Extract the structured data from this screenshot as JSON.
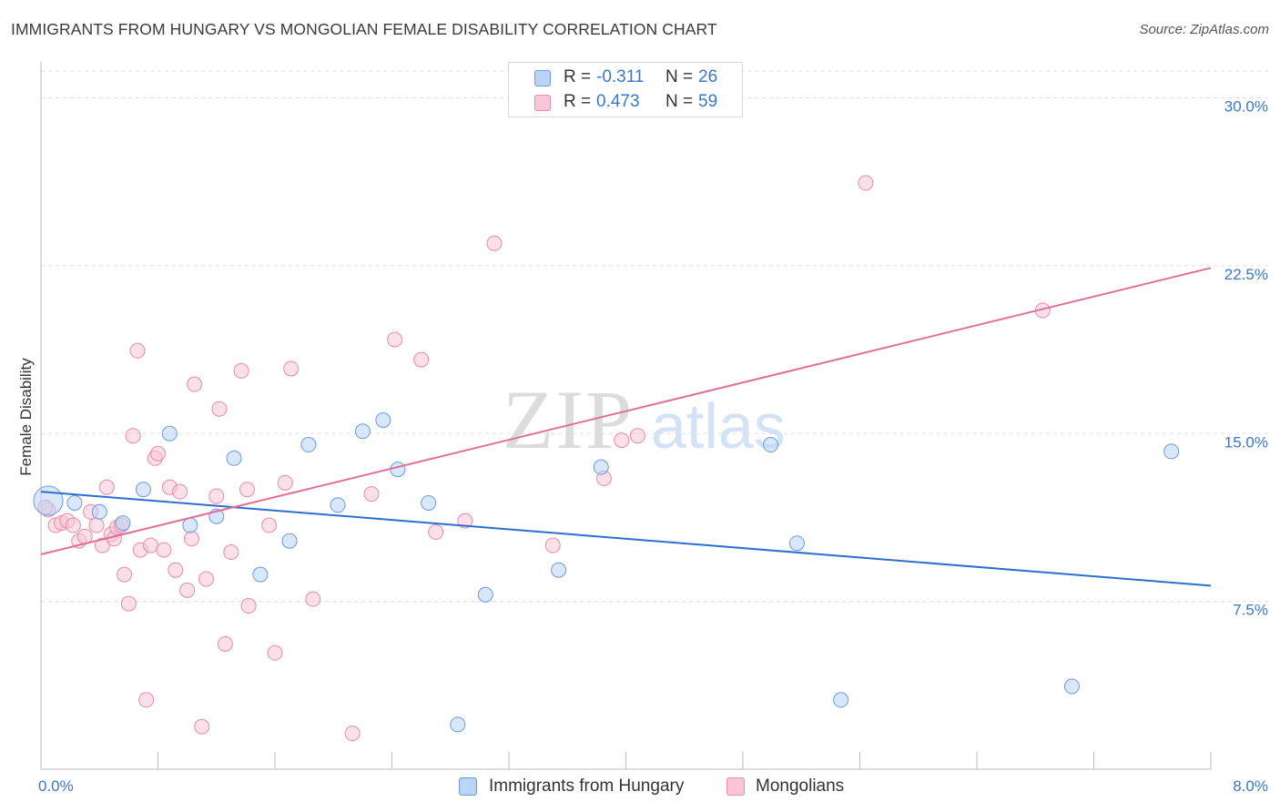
{
  "title": "IMMIGRANTS FROM HUNGARY VS MONGOLIAN FEMALE DISABILITY CORRELATION CHART",
  "source": "Source: ZipAtlas.com",
  "watermark": {
    "zip": "ZIP",
    "atlas": "atlas"
  },
  "legend_top": {
    "rows": [
      {
        "r_label": "R =",
        "r_value": "-0.311",
        "n_label": "N =",
        "n_value": "26"
      },
      {
        "r_label": "R =",
        "r_value": "0.473",
        "n_label": "N =",
        "n_value": "59"
      }
    ]
  },
  "legend_bottom": {
    "items": [
      {
        "label": "Immigrants from Hungary"
      },
      {
        "label": "Mongolians"
      }
    ]
  },
  "colors": {
    "blue_fill": "#b9d4f5",
    "blue_stroke": "#6a9be0",
    "blue_line": "#2d6fcc",
    "pink_fill": "#f8c6d6",
    "pink_stroke": "#e88aaa",
    "pink_line": "#e07098",
    "axis_text": "#3a78c9",
    "grid": "#dddddd"
  },
  "chart_data": {
    "type": "scatter",
    "title": "IMMIGRANTS FROM HUNGARY VS MONGOLIAN FEMALE DISABILITY CORRELATION CHART",
    "xlabel": "",
    "ylabel": "Female Disability",
    "xlim": [
      0,
      8
    ],
    "ylim": [
      0,
      31.2
    ],
    "x_tick_labels": [
      "0.0%",
      "8.0%"
    ],
    "y_ticks": [
      7.5,
      15.0,
      22.5,
      30.0
    ],
    "y_tick_labels": [
      "7.5%",
      "15.0%",
      "22.5%",
      "30.0%"
    ],
    "grid": true,
    "legend_position": "top-center",
    "series": [
      {
        "name": "Immigrants from Hungary",
        "color": "blue",
        "r": -0.311,
        "n": 26,
        "trend": {
          "x": [
            0,
            8
          ],
          "y": [
            12.4,
            8.2
          ]
        },
        "points": [
          [
            0.05,
            12.0
          ],
          [
            0.23,
            11.9
          ],
          [
            0.4,
            11.5
          ],
          [
            0.56,
            11.0
          ],
          [
            0.7,
            12.5
          ],
          [
            0.88,
            15.0
          ],
          [
            1.02,
            10.9
          ],
          [
            1.2,
            11.3
          ],
          [
            1.32,
            13.9
          ],
          [
            1.5,
            8.7
          ],
          [
            1.7,
            10.2
          ],
          [
            1.83,
            14.5
          ],
          [
            2.03,
            11.8
          ],
          [
            2.2,
            15.1
          ],
          [
            2.34,
            15.6
          ],
          [
            2.44,
            13.4
          ],
          [
            2.65,
            11.9
          ],
          [
            2.85,
            2.0
          ],
          [
            3.04,
            7.8
          ],
          [
            3.54,
            8.9
          ],
          [
            3.83,
            13.5
          ],
          [
            4.99,
            14.5
          ],
          [
            5.17,
            10.1
          ],
          [
            5.47,
            3.1
          ],
          [
            7.05,
            3.7
          ],
          [
            7.73,
            14.2
          ]
        ]
      },
      {
        "name": "Mongolians",
        "color": "pink",
        "r": 0.473,
        "n": 59,
        "trend": {
          "x": [
            0,
            8
          ],
          "y": [
            9.6,
            22.4
          ]
        },
        "points": [
          [
            0.05,
            11.6
          ],
          [
            0.1,
            10.9
          ],
          [
            0.14,
            11.0
          ],
          [
            0.18,
            11.1
          ],
          [
            0.22,
            10.9
          ],
          [
            0.26,
            10.2
          ],
          [
            0.3,
            10.4
          ],
          [
            0.34,
            11.5
          ],
          [
            0.38,
            10.9
          ],
          [
            0.42,
            10.0
          ],
          [
            0.45,
            12.6
          ],
          [
            0.48,
            10.5
          ],
          [
            0.5,
            10.3
          ],
          [
            0.52,
            10.8
          ],
          [
            0.55,
            10.9
          ],
          [
            0.57,
            8.7
          ],
          [
            0.6,
            7.4
          ],
          [
            0.63,
            14.9
          ],
          [
            0.66,
            18.7
          ],
          [
            0.68,
            9.8
          ],
          [
            0.72,
            3.1
          ],
          [
            0.75,
            10.0
          ],
          [
            0.78,
            13.9
          ],
          [
            0.8,
            14.1
          ],
          [
            0.84,
            9.8
          ],
          [
            0.88,
            12.6
          ],
          [
            0.92,
            8.9
          ],
          [
            0.95,
            12.4
          ],
          [
            1.0,
            8.0
          ],
          [
            1.03,
            10.3
          ],
          [
            1.05,
            17.2
          ],
          [
            1.1,
            1.9
          ],
          [
            1.13,
            8.5
          ],
          [
            1.2,
            12.2
          ],
          [
            1.22,
            16.1
          ],
          [
            1.26,
            5.6
          ],
          [
            1.3,
            9.7
          ],
          [
            1.37,
            17.8
          ],
          [
            1.41,
            12.5
          ],
          [
            1.42,
            7.3
          ],
          [
            1.56,
            10.9
          ],
          [
            1.6,
            5.2
          ],
          [
            1.67,
            12.8
          ],
          [
            1.71,
            17.9
          ],
          [
            1.86,
            7.6
          ],
          [
            2.13,
            1.6
          ],
          [
            2.26,
            12.3
          ],
          [
            2.42,
            19.2
          ],
          [
            2.6,
            18.3
          ],
          [
            2.7,
            10.6
          ],
          [
            2.9,
            11.1
          ],
          [
            3.1,
            23.5
          ],
          [
            3.5,
            10.0
          ],
          [
            3.85,
            13.0
          ],
          [
            3.97,
            14.7
          ],
          [
            4.08,
            14.9
          ],
          [
            5.64,
            26.2
          ],
          [
            6.85,
            20.5
          ],
          [
            0.03,
            11.7
          ]
        ]
      }
    ]
  }
}
